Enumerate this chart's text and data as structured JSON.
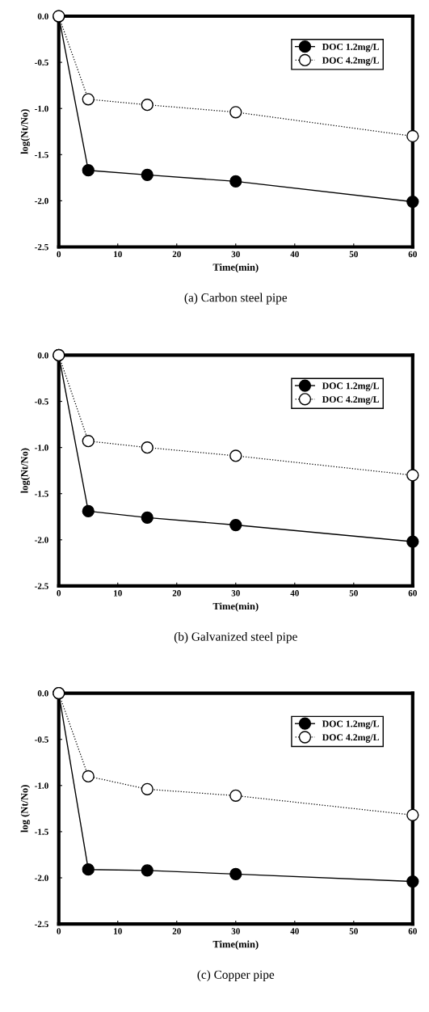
{
  "chart_data": [
    {
      "type": "line",
      "xlabel": "Time(min)",
      "ylabel": "log(Nt/No)",
      "annotations": [
        "(a) Carbon steel pipe"
      ],
      "x": [
        0,
        5,
        15,
        30,
        60
      ],
      "xlim": [
        0,
        60
      ],
      "xticks": [
        0,
        10,
        20,
        30,
        40,
        50,
        60
      ],
      "ylim": [
        -2.5,
        0.0
      ],
      "yticks": [
        {
          "value": -2.5,
          "label": "-2.5"
        },
        {
          "value": -2.0,
          "label": "-2.0"
        },
        {
          "value": -1.5,
          "label": "-1.5"
        },
        {
          "value": -1.0,
          "label": "-1.0"
        },
        {
          "value": -0.5,
          "label": "-0.5"
        },
        {
          "value": 0.0,
          "label": "0.0"
        }
      ],
      "legend": "top right",
      "grid": false,
      "marker": "circle",
      "series": [
        {
          "name": "DOC 1.2mg/L",
          "color": "#000000",
          "line_style": "solid",
          "values": [
            0,
            -1.67,
            -1.72,
            -1.79,
            -2.01
          ]
        },
        {
          "name": "DOC 4.2mg/L",
          "color": "#ffffff",
          "line_style": "dotted",
          "values": [
            0,
            -0.9,
            -0.96,
            -1.04,
            -1.3
          ]
        }
      ]
    },
    {
      "type": "line",
      "xlabel": "Time(min)",
      "ylabel": "log(Nt/No)",
      "annotations": [
        "(b) Galvanized steel pipe"
      ],
      "x": [
        0,
        5,
        15,
        30,
        60
      ],
      "xlim": [
        0,
        60
      ],
      "xticks": [
        0,
        10,
        20,
        30,
        40,
        50,
        60
      ],
      "ylim": [
        -2.5,
        0.0
      ],
      "yticks": [
        {
          "value": -2.5,
          "label": "-2.5"
        },
        {
          "value": -2.0,
          "label": "-2.0"
        },
        {
          "value": -1.5,
          "label": "-1.5"
        },
        {
          "value": -1.0,
          "label": "-1.0"
        },
        {
          "value": -0.5,
          "label": "-0.5"
        },
        {
          "value": 0.0,
          "label": "0.0"
        }
      ],
      "legend": "top right",
      "grid": false,
      "marker": "circle",
      "series": [
        {
          "name": "DOC 1.2mg/L",
          "color": "#000000",
          "line_style": "solid",
          "values": [
            0,
            -1.69,
            -1.76,
            -1.84,
            -2.02
          ]
        },
        {
          "name": "DOC 4.2mg/L",
          "color": "#ffffff",
          "line_style": "dotted",
          "values": [
            0,
            -0.93,
            -1.0,
            -1.09,
            -1.3
          ]
        }
      ]
    },
    {
      "type": "line",
      "xlabel": "Time(min)",
      "ylabel": "log (Nt/No)",
      "annotations": [
        "(c) Copper pipe"
      ],
      "x": [
        0,
        5,
        15,
        30,
        60
      ],
      "xlim": [
        0,
        60
      ],
      "xticks": [
        0,
        10,
        20,
        30,
        40,
        50,
        60
      ],
      "ylim": [
        -2.5,
        0.0
      ],
      "yticks": [
        {
          "value": -2.5,
          "label": "-2.5"
        },
        {
          "value": -2.0,
          "label": "-2.0"
        },
        {
          "value": -1.5,
          "label": "-1.5"
        },
        {
          "value": -1.0,
          "label": "-1.0"
        },
        {
          "value": -0.5,
          "label": "-0.5"
        },
        {
          "value": 0.0,
          "label": "0.0"
        }
      ],
      "legend": "top right",
      "grid": false,
      "marker": "circle",
      "series": [
        {
          "name": "DOC 1.2mg/L",
          "color": "#000000",
          "line_style": "solid",
          "values": [
            0,
            -1.91,
            -1.92,
            -1.96,
            -2.04
          ]
        },
        {
          "name": "DOC 4.2mg/L",
          "color": "#ffffff",
          "line_style": "dotted",
          "values": [
            0,
            -0.9,
            -1.04,
            -1.11,
            -1.32
          ]
        }
      ]
    }
  ]
}
